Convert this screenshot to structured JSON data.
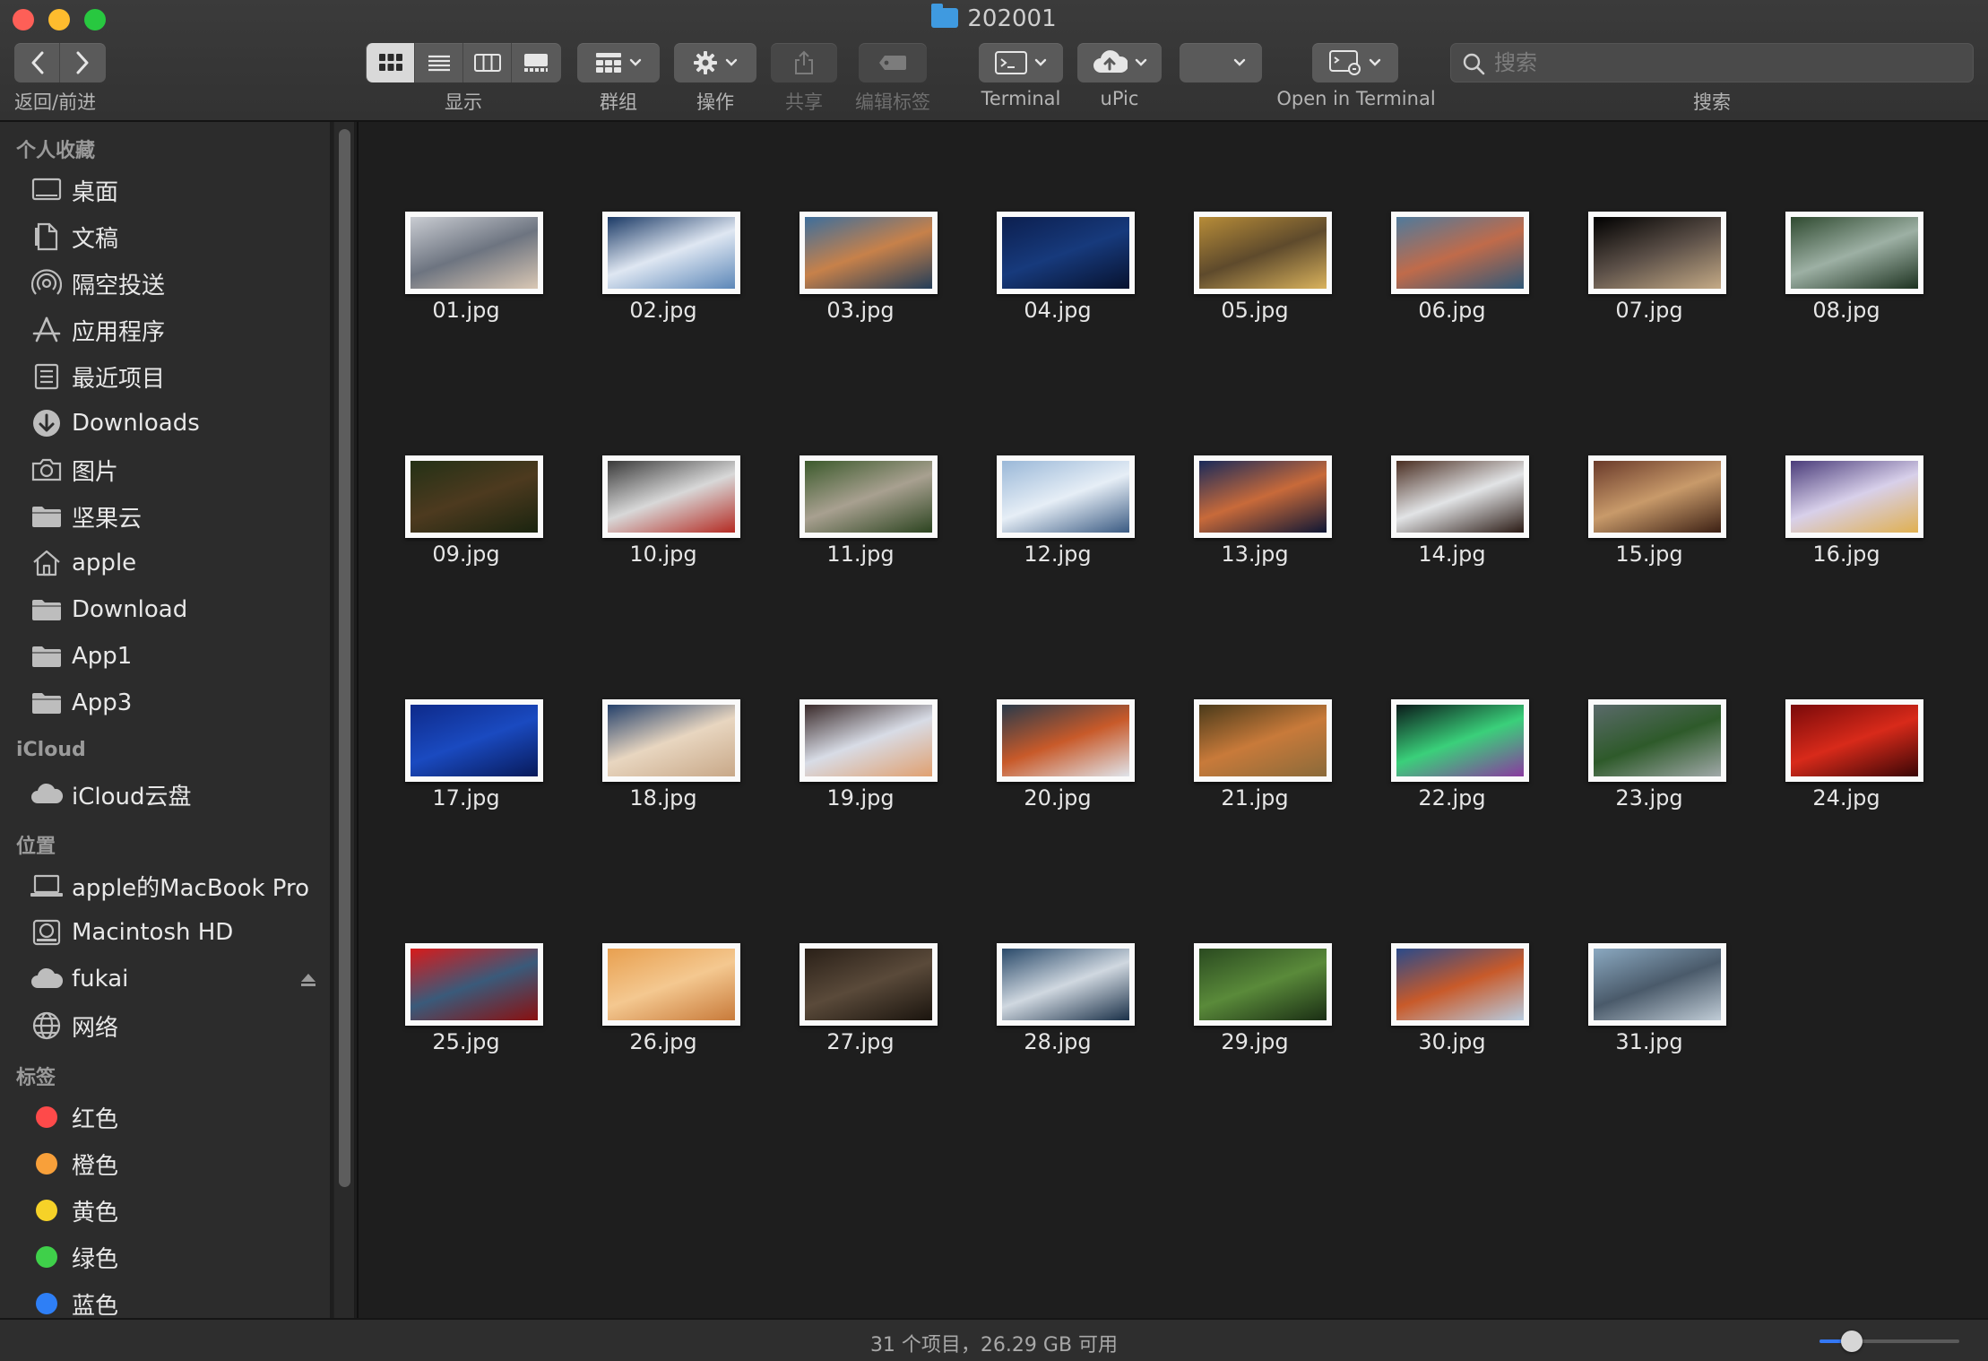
{
  "window": {
    "title": "202001"
  },
  "toolbar": {
    "nav_caption": "返回/前进",
    "view_caption": "显示",
    "group_caption": "群组",
    "action_caption": "操作",
    "share_caption": "共享",
    "tags_caption": "编辑标签",
    "terminal_caption": "Terminal",
    "upic_caption": "uPic",
    "open_terminal_caption": "Open in Terminal",
    "search_caption": "搜索",
    "search_placeholder": "搜索",
    "active_view": "icon"
  },
  "sidebar": {
    "favorites_title": "个人收藏",
    "favorites": [
      {
        "label": "桌面",
        "icon": "desktop-icon"
      },
      {
        "label": "文稿",
        "icon": "documents-icon"
      },
      {
        "label": "隔空投送",
        "icon": "airdrop-icon"
      },
      {
        "label": "应用程序",
        "icon": "applications-icon"
      },
      {
        "label": "最近项目",
        "icon": "recents-icon"
      },
      {
        "label": "Downloads",
        "icon": "downloads-icon"
      },
      {
        "label": "图片",
        "icon": "camera-icon"
      },
      {
        "label": "坚果云",
        "icon": "folder-icon"
      },
      {
        "label": "apple",
        "icon": "home-icon"
      },
      {
        "label": "Download",
        "icon": "folder-icon"
      },
      {
        "label": "App1",
        "icon": "folder-icon"
      },
      {
        "label": "App3",
        "icon": "folder-icon"
      }
    ],
    "icloud_title": "iCloud",
    "icloud": [
      {
        "label": "iCloud云盘",
        "icon": "icloud-icon"
      }
    ],
    "locations_title": "位置",
    "locations": [
      {
        "label": "apple的MacBook Pro",
        "icon": "laptop-icon"
      },
      {
        "label": "Macintosh HD",
        "icon": "disk-icon"
      },
      {
        "label": "fukai",
        "icon": "cloud-icon"
      },
      {
        "label": "网络",
        "icon": "network-icon"
      }
    ],
    "tags_title": "标签",
    "tags": [
      {
        "label": "红色",
        "color": "#fe4a4a"
      },
      {
        "label": "橙色",
        "color": "#f8a03a"
      },
      {
        "label": "黄色",
        "color": "#f6d228"
      },
      {
        "label": "绿色",
        "color": "#3fd04a"
      },
      {
        "label": "蓝色",
        "color": "#2e7ff6"
      }
    ]
  },
  "files": [
    {
      "name": "01.jpg",
      "colors": [
        "#c9ccd2",
        "#6d7480",
        "#d9c7b4"
      ]
    },
    {
      "name": "02.jpg",
      "colors": [
        "#1b3a66",
        "#dfe7f2",
        "#5c87b8"
      ]
    },
    {
      "name": "03.jpg",
      "colors": [
        "#3d6e9c",
        "#c7814a",
        "#233d58"
      ]
    },
    {
      "name": "04.jpg",
      "colors": [
        "#0c1f4f",
        "#173a7c",
        "#07122f"
      ]
    },
    {
      "name": "05.jpg",
      "colors": [
        "#b78c38",
        "#5e4a2c",
        "#d9b25c"
      ]
    },
    {
      "name": "06.jpg",
      "colors": [
        "#4f7a9c",
        "#c06b4a",
        "#2f5878"
      ]
    },
    {
      "name": "07.jpg",
      "colors": [
        "#000000",
        "#5c5048",
        "#c4aa86"
      ]
    },
    {
      "name": "08.jpg",
      "colors": [
        "#2f4a30",
        "#9db0a4",
        "#1d3220"
      ]
    },
    {
      "name": "09.jpg",
      "colors": [
        "#243116",
        "#4d3a1f",
        "#1a240f"
      ]
    },
    {
      "name": "10.jpg",
      "colors": [
        "#3a3a3a",
        "#d8d8d8",
        "#b42a22"
      ]
    },
    {
      "name": "11.jpg",
      "colors": [
        "#3c5a2c",
        "#a8a090",
        "#2c4420"
      ]
    },
    {
      "name": "12.jpg",
      "colors": [
        "#9ab8d8",
        "#e6eef6",
        "#3a5a82"
      ]
    },
    {
      "name": "13.jpg",
      "colors": [
        "#1a2a5a",
        "#c86a3a",
        "#0e1634"
      ]
    },
    {
      "name": "14.jpg",
      "colors": [
        "#4a2e22",
        "#e2e4e6",
        "#2a1a14"
      ]
    },
    {
      "name": "15.jpg",
      "colors": [
        "#6a3a2a",
        "#c89a6a",
        "#3c2014"
      ]
    },
    {
      "name": "16.jpg",
      "colors": [
        "#4a3c7a",
        "#d8d0ea",
        "#e0b050"
      ]
    },
    {
      "name": "17.jpg",
      "colors": [
        "#0e2a8a",
        "#1a4ac0",
        "#081a5a"
      ]
    },
    {
      "name": "18.jpg",
      "colors": [
        "#24406a",
        "#e8d6c0",
        "#c8a888"
      ]
    },
    {
      "name": "19.jpg",
      "colors": [
        "#3a2a2a",
        "#d8dce6",
        "#e0a070"
      ]
    },
    {
      "name": "20.jpg",
      "colors": [
        "#2a3a4a",
        "#c85a2a",
        "#e0e4ea"
      ]
    },
    {
      "name": "21.jpg",
      "colors": [
        "#4a3a1a",
        "#c87a3a",
        "#8a6a3a"
      ]
    },
    {
      "name": "22.jpg",
      "colors": [
        "#0a1a1a",
        "#3ad07a",
        "#8a3aa0"
      ]
    },
    {
      "name": "23.jpg",
      "colors": [
        "#5a6a6a",
        "#2e5a2a",
        "#a0a8a8"
      ]
    },
    {
      "name": "24.jpg",
      "colors": [
        "#7a0a0a",
        "#d82a1a",
        "#3a0606"
      ]
    },
    {
      "name": "25.jpg",
      "colors": [
        "#d81a1a",
        "#3a5a7a",
        "#8a1010"
      ]
    },
    {
      "name": "26.jpg",
      "colors": [
        "#e8a050",
        "#f4c890",
        "#c87a3a"
      ]
    },
    {
      "name": "27.jpg",
      "colors": [
        "#2a2018",
        "#5a4a3a",
        "#1a140e"
      ]
    },
    {
      "name": "28.jpg",
      "colors": [
        "#2a4a6a",
        "#d0d8e0",
        "#1a3048"
      ]
    },
    {
      "name": "29.jpg",
      "colors": [
        "#2a4a20",
        "#5a8a3a",
        "#1a2e14"
      ]
    },
    {
      "name": "30.jpg",
      "colors": [
        "#2a4a8a",
        "#c85a2a",
        "#b8cce0"
      ]
    },
    {
      "name": "31.jpg",
      "colors": [
        "#8aa8c0",
        "#4a5a6a",
        "#c0ccd6"
      ]
    }
  ],
  "status": {
    "text": "31 个项目，26.29 GB 可用",
    "zoom_fraction": 0.23
  }
}
